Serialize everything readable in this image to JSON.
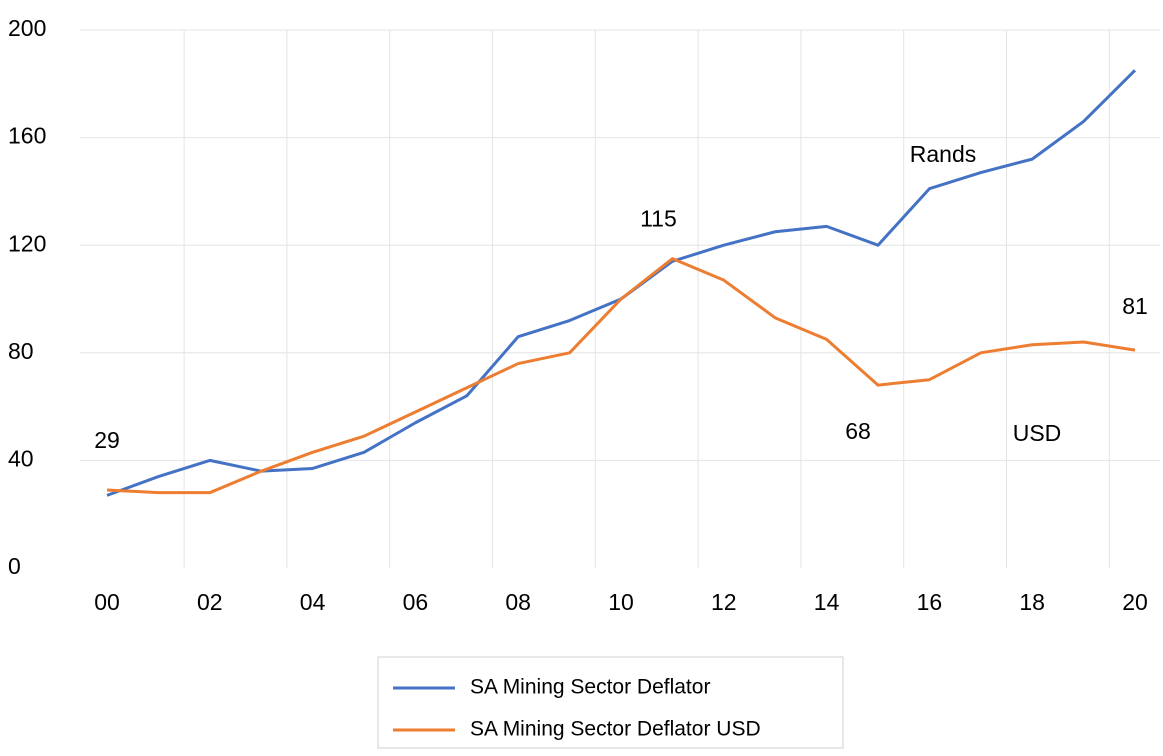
{
  "chart_data": {
    "type": "line",
    "categories": [
      "00",
      null,
      "02",
      null,
      "04",
      null,
      "06",
      null,
      "08",
      null,
      "10",
      null,
      "12",
      null,
      "14",
      null,
      "16",
      null,
      "18",
      null,
      "20"
    ],
    "series": [
      {
        "name": "SA Mining Sector Deflator",
        "color": "#4472c4",
        "values": [
          27,
          34,
          40,
          36,
          37,
          43,
          54,
          64,
          86,
          92,
          100,
          114,
          120,
          125,
          127,
          120,
          141,
          147,
          152,
          166,
          185
        ]
      },
      {
        "name": "SA Mining Sector Deflator USD",
        "color": "#ed7d31",
        "values": [
          29,
          28,
          28,
          36,
          43,
          49,
          58,
          67,
          76,
          80,
          100,
          115,
          107,
          93,
          85,
          68,
          70,
          80,
          83,
          84,
          81
        ]
      }
    ],
    "annotations": [
      "Rands",
      "USD"
    ],
    "ylim": [
      0,
      200
    ],
    "yticks": [
      0,
      40,
      80,
      120,
      160,
      200
    ],
    "grid": true,
    "legend": "bottom"
  }
}
